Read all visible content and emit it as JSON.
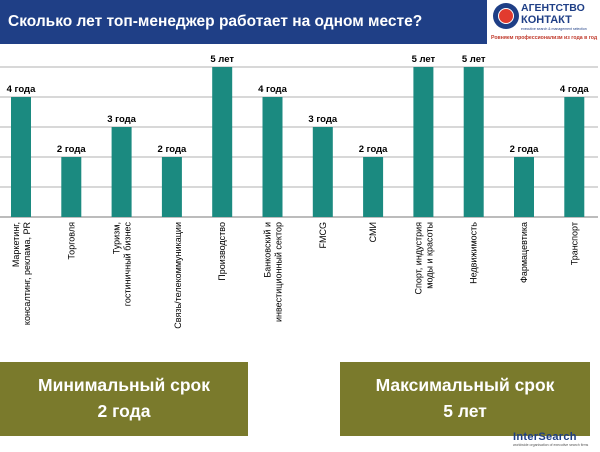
{
  "header": {
    "title": "Сколько лет топ-менеджер работает на одном месте?"
  },
  "logo": {
    "line1": "АГЕНТСТВО",
    "line2": "КОНТАКТ",
    "line3": "executive search & management selection",
    "line4": "Ровняем профессионализм из года в год",
    "icon": "globe-icon"
  },
  "chart_data": {
    "type": "bar",
    "categories": [
      "Маркетинг, консалтинг, реклама, PR",
      "Торговля",
      "Туризм, гостиничный бизнес",
      "Связь/телекоммуникации",
      "Производство",
      "Банковский и инвестиционный сектор",
      "FMCG",
      "СМИ",
      "Спорт, индустрия моды и красоты",
      "Недвижимость",
      "Фармацевтика",
      "Транспорт"
    ],
    "values": [
      4,
      2,
      3,
      2,
      5,
      4,
      3,
      2,
      5,
      5,
      2,
      4
    ],
    "data_labels": [
      "4 года",
      "2 года",
      "3 года",
      "2 года",
      "5 лет",
      "4 года",
      "3 года",
      "2 года",
      "5 лет",
      "5 лет",
      "2 года",
      "4 года"
    ],
    "ylim": [
      0,
      5
    ],
    "grid": true,
    "bar_color": "#1b8a80",
    "grid_color": "#b0b0b0",
    "title": "",
    "xlabel": "",
    "ylabel": ""
  },
  "summary": {
    "min_title": "Минимальный срок",
    "min_value": "2 года",
    "max_title": "Максимальный срок",
    "max_value": "5 лет"
  },
  "footer": {
    "brand": "InterSearch",
    "tagline": "worldwide organisation of executive search firms"
  }
}
